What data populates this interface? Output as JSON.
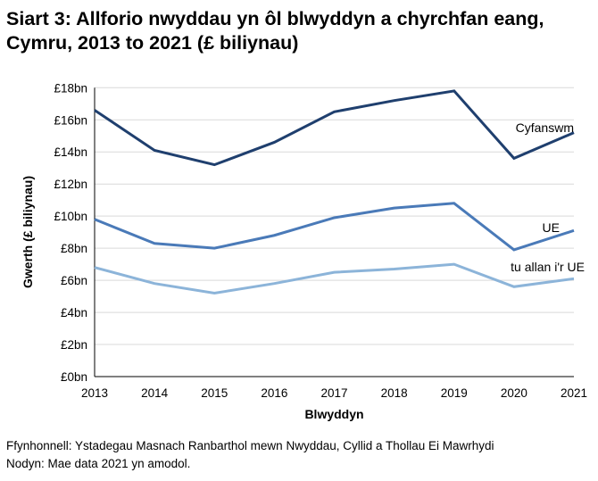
{
  "chart_data": {
    "type": "line",
    "title": "Siart 3: Allforio nwyddau yn ôl blwyddyn a chyrchfan eang, Cymru, 2013 to 2021 (£ biliynau)",
    "xlabel": "Blwyddyn",
    "ylabel": "Gwerth (£ biliynau)",
    "categories": [
      "2013",
      "2014",
      "2015",
      "2016",
      "2017",
      "2018",
      "2019",
      "2020",
      "2021"
    ],
    "ylim": [
      0,
      18
    ],
    "yticks": [
      "£0bn",
      "£2bn",
      "£4bn",
      "£6bn",
      "£8bn",
      "£10bn",
      "£12bn",
      "£14bn",
      "£16bn",
      "£18bn"
    ],
    "grid": true,
    "legend": "inline labels at right",
    "series": [
      {
        "name": "Cyfanswm",
        "color": "#1f3f6e",
        "values": [
          16.6,
          14.1,
          13.2,
          14.6,
          16.5,
          17.2,
          17.8,
          13.6,
          15.2
        ]
      },
      {
        "name": "UE",
        "color": "#4a7ab8",
        "values": [
          9.8,
          8.3,
          8.0,
          8.8,
          9.9,
          10.5,
          10.8,
          7.9,
          9.1
        ]
      },
      {
        "name": "tu allan i'r UE",
        "color": "#8cb4d9",
        "values": [
          6.8,
          5.8,
          5.2,
          5.8,
          6.5,
          6.7,
          7.0,
          5.6,
          6.1
        ]
      }
    ]
  },
  "source": "Ffynhonnell: Ystadegau Masnach Ranbarthol mewn Nwyddau, Cyllid a Thollau Ei Mawrhydi",
  "note": "Nodyn: Mae data 2021 yn amodol."
}
